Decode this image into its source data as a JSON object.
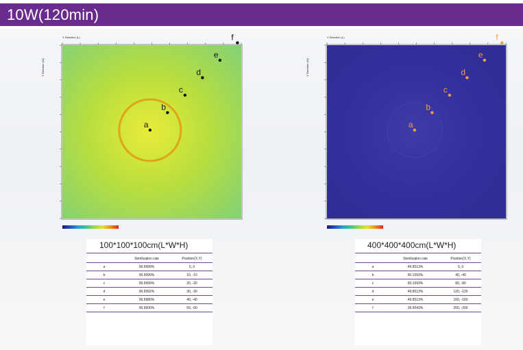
{
  "banner": {
    "title": "10W(120min)"
  },
  "panels": [
    {
      "id": "left",
      "x_axis_title": "X Direction (L)",
      "y_axis_title": "Y Direction (W)",
      "map_colors": {
        "center": "#e9ec3a",
        "mid": "#b8de3e",
        "edge": "#7fd07a"
      },
      "ring_color": "#e09a10",
      "points": [
        {
          "label": "a",
          "x": 0,
          "y": 0
        },
        {
          "label": "b",
          "x": 10,
          "y": -10
        },
        {
          "label": "c",
          "x": 20,
          "y": -20
        },
        {
          "label": "d",
          "x": 30,
          "y": -30
        },
        {
          "label": "e",
          "x": 40,
          "y": -40
        },
        {
          "label": "f",
          "x": 50,
          "y": -50
        }
      ],
      "table": {
        "title": "100*100*100cm(L*W*H)",
        "headers": [
          "",
          "Sterilization rate",
          "Position(X,Y)"
        ],
        "rows": [
          [
            "a",
            "99.9999%",
            "0, 0"
          ],
          [
            "b",
            "99.9999%",
            "10, -10"
          ],
          [
            "c",
            "99.9999%",
            "20, -20"
          ],
          [
            "d",
            "99.9992%",
            "30, -30"
          ],
          [
            "e",
            "99.9980%",
            "40, -40"
          ],
          [
            "f",
            "99.9600%",
            "50, -50"
          ]
        ]
      }
    },
    {
      "id": "right",
      "x_axis_title": "X Direction (L)",
      "y_axis_title": "Y Direction (W)",
      "map_colors": {
        "center": "#3e3aa6",
        "mid": "#34309c",
        "edge": "#2f2b94"
      },
      "ring_color": "#4a4ab8",
      "points": [
        {
          "label": "a",
          "x": 0,
          "y": 0
        },
        {
          "label": "b",
          "x": 40,
          "y": -40
        },
        {
          "label": "c",
          "x": 80,
          "y": -80
        },
        {
          "label": "d",
          "x": 120,
          "y": -120
        },
        {
          "label": "e",
          "x": 160,
          "y": -160
        },
        {
          "label": "f",
          "x": 200,
          "y": -200
        }
      ],
      "table": {
        "title": "400*400*400cm(L*W*H)",
        "headers": [
          "",
          "Sterilization rate",
          "Position(X,Y)"
        ],
        "rows": [
          [
            "a",
            "49.8513%",
            "0, 0"
          ],
          [
            "b",
            "60.1093%",
            "40, -40"
          ],
          [
            "c",
            "60.1093%",
            "80, -80"
          ],
          [
            "d",
            "49.8513%",
            "120, -120"
          ],
          [
            "e",
            "49.8513%",
            "160, -160"
          ],
          [
            "f",
            "39.9043%",
            "200, -200"
          ]
        ]
      }
    }
  ]
}
